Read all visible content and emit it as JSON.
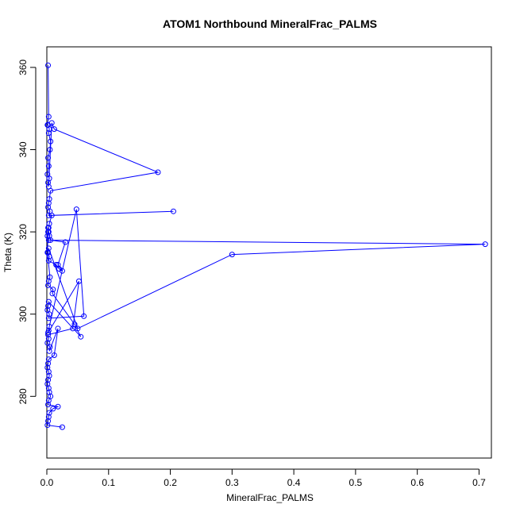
{
  "chart_data": {
    "type": "line",
    "title": "ATOM1 Northbound MineralFrac_PALMS",
    "xlabel": "MineralFrac_PALMS",
    "ylabel": "Theta (K)",
    "xlim": [
      0,
      0.72
    ],
    "ylim": [
      265,
      365
    ],
    "x_ticks": [
      0.0,
      0.1,
      0.2,
      0.3,
      0.4,
      0.5,
      0.6,
      0.7
    ],
    "x_tick_labels": [
      "0.0",
      "0.1",
      "0.2",
      "0.3",
      "0.4",
      "0.5",
      "0.6",
      "0.7"
    ],
    "y_ticks": [
      280,
      300,
      320,
      340,
      360
    ],
    "y_tick_labels": [
      "280",
      "300",
      "320",
      "340",
      "360"
    ],
    "grid": false,
    "legend": "none",
    "marker": "open-circle",
    "color": "#0000ff",
    "series": [
      {
        "x": [
          0.002,
          0.003,
          0.001,
          0.002,
          0.004,
          0.003,
          0.006,
          0.005,
          0.002,
          0.003,
          0.001,
          0.004,
          0.002,
          0.003,
          0.008,
          0.012,
          0.18,
          0.006,
          0.004,
          0.003,
          0.002,
          0.005,
          0.003,
          0.205,
          0.008,
          0.004,
          0.003,
          0.002,
          0.001,
          0.003,
          0.71,
          0.3,
          0.05,
          0.003,
          0.002,
          0.004,
          0.003,
          0.015,
          0.02,
          0.025,
          0.018,
          0.03,
          0.006,
          0.004,
          0.003,
          0.002,
          0.001,
          0.005,
          0.003,
          0.002,
          0.01,
          0.009,
          0.045,
          0.055,
          0.003,
          0.002,
          0.001,
          0.004,
          0.003,
          0.06,
          0.048,
          0.004,
          0.003,
          0.002,
          0.052,
          0.042,
          0.002,
          0.003,
          0.001,
          0.005,
          0.004,
          0.018,
          0.012,
          0.003,
          0.002,
          0.001,
          0.003,
          0.004,
          0.002,
          0.001,
          0.003,
          0.004,
          0.006,
          0.003,
          0.002,
          0.018,
          0.01,
          0.004,
          0.003,
          0.002,
          0.001,
          0.025
        ],
        "y": [
          360.5,
          348,
          346,
          346,
          345,
          344,
          342,
          340,
          338,
          336,
          334,
          333,
          332,
          331,
          346.5,
          345,
          334.5,
          330,
          328,
          327,
          326,
          325,
          324,
          325,
          324,
          322,
          321,
          320,
          319,
          318,
          317,
          314.5,
          296.5,
          316,
          315,
          314,
          313,
          312,
          311,
          310.5,
          312,
          317.5,
          318,
          319,
          320,
          321,
          315,
          309,
          308,
          307,
          306,
          305,
          297.5,
          294.5,
          303,
          302,
          301,
          300,
          299,
          299.5,
          325.5,
          297,
          296,
          295.5,
          308,
          296.5,
          295,
          294,
          293,
          292,
          291,
          296.5,
          290,
          289,
          288,
          287,
          286,
          285,
          284,
          283,
          282,
          281,
          280,
          279,
          278,
          277.5,
          277,
          276,
          275,
          274,
          273,
          272.5
        ]
      }
    ]
  }
}
